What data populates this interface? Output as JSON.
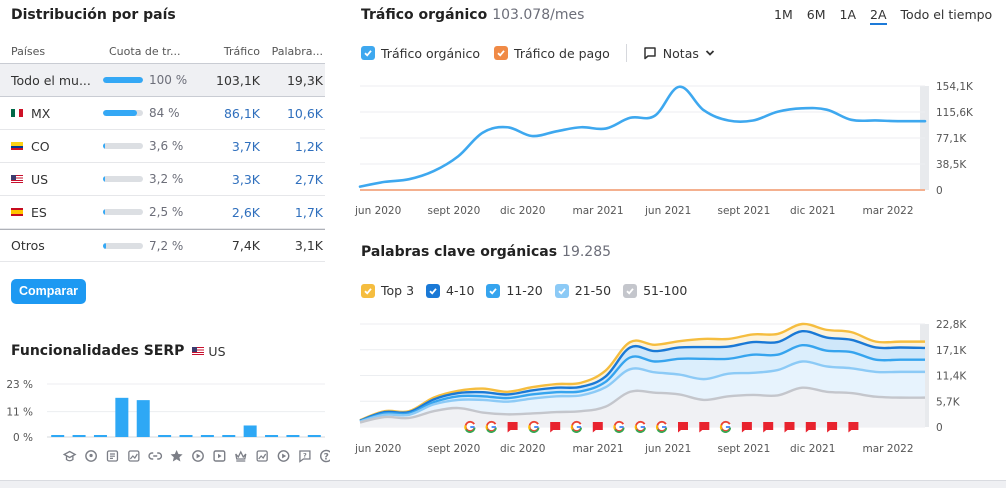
{
  "country_panel": {
    "title": "Distribución por país",
    "headers": [
      "Países",
      "Cuota de tr...",
      "Tráfico",
      "Palabra..."
    ],
    "rows": [
      {
        "country": "Todo el mu...",
        "flag": "",
        "share_label": "100 %",
        "share": 100,
        "traffic": "103,1K",
        "keywords": "19,3K",
        "linked": false,
        "highlight": true
      },
      {
        "country": "MX",
        "flag": "mx",
        "share_label": "84 %",
        "share": 84,
        "traffic": "86,1K",
        "keywords": "10,6K",
        "linked": true,
        "highlight": false
      },
      {
        "country": "CO",
        "flag": "co",
        "share_label": "3,6 %",
        "share": 3.6,
        "traffic": "3,7K",
        "keywords": "1,2K",
        "linked": true,
        "highlight": false
      },
      {
        "country": "US",
        "flag": "us",
        "share_label": "3,2 %",
        "share": 3.2,
        "traffic": "3,3K",
        "keywords": "2,7K",
        "linked": true,
        "highlight": false
      },
      {
        "country": "ES",
        "flag": "es",
        "share_label": "2,5 %",
        "share": 2.5,
        "traffic": "2,6K",
        "keywords": "1,7K",
        "linked": true,
        "highlight": false
      },
      {
        "country": "Otros",
        "flag": "",
        "share_label": "7,2 %",
        "share": 7.2,
        "traffic": "7,4K",
        "keywords": "3,1K",
        "linked": false,
        "highlight": false
      }
    ],
    "compare_button": "Comparar"
  },
  "serp_panel": {
    "title": "Funcionalidades SERP",
    "country": "US",
    "y_ticks": [
      "23 %",
      "11 %",
      "0 %"
    ],
    "icons": [
      "graduation-cap-icon",
      "map-pin-icon",
      "article-icon",
      "image-pack-icon",
      "link-icon",
      "star-icon",
      "video-play-icon",
      "video-icon",
      "crown-icon",
      "image-icon",
      "play-circle-icon",
      "feedback-icon",
      "question-icon"
    ]
  },
  "traffic_panel": {
    "title": "Tráfico orgánico",
    "value": "103.078/mes",
    "ranges": [
      "1M",
      "6M",
      "1A",
      "2A",
      "Todo el tiempo"
    ],
    "active_range": "2A",
    "legend": [
      {
        "label": "Tráfico orgánico",
        "color": "#3ea8ef"
      },
      {
        "label": "Tráfico de pago",
        "color": "#f08a46"
      }
    ],
    "notes_label": "Notas"
  },
  "keywords_panel": {
    "title": "Palabras clave orgánicas",
    "value": "19.285",
    "legend": [
      {
        "label": "Top 3",
        "color": "#f5bd3f"
      },
      {
        "label": "4-10",
        "color": "#1a79d6"
      },
      {
        "label": "11-20",
        "color": "#36a4ee"
      },
      {
        "label": "21-50",
        "color": "#8ccaf6"
      },
      {
        "label": "51-100",
        "color": "#c4c6cc"
      }
    ],
    "markers": [
      "g",
      "g",
      "f",
      "g",
      "f",
      "g",
      "f",
      "g",
      "g",
      "g",
      "f",
      "f",
      "g",
      "f",
      "f",
      "f",
      "f",
      "f",
      "f"
    ]
  },
  "chart_data": [
    {
      "type": "bar",
      "title": "Funcionalidades SERP",
      "categories": [
        "Knowledge panel",
        "Local pack",
        "Featured snippet",
        "Image pack",
        "Sitelinks",
        "Reviews",
        "Video",
        "Featured video",
        "Top stories",
        "Image",
        "Video carousel",
        "Feedback",
        "People also ask"
      ],
      "values": [
        0.5,
        0.5,
        0.5,
        17,
        16,
        0.5,
        0.5,
        0.5,
        0.5,
        5,
        0.5,
        0.5,
        0.5
      ],
      "ylabel": "%",
      "ylim": [
        0,
        23
      ],
      "y_ticks": [
        "23 %",
        "11 %",
        "0 %"
      ],
      "grid": true
    },
    {
      "type": "line",
      "title": "Tráfico orgánico",
      "x": [
        "may 2020",
        "jun 2020",
        "jul 2020",
        "ago 2020",
        "sept 2020",
        "oct 2020",
        "nov 2020",
        "dic 2020",
        "ene 2021",
        "feb 2021",
        "mar 2021",
        "abr 2021",
        "may 2021",
        "jun 2021",
        "jul 2021",
        "ago 2021",
        "sept 2021",
        "oct 2021",
        "nov 2021",
        "dic 2021",
        "ene 2022",
        "feb 2022",
        "mar 2022",
        "abr 2022"
      ],
      "x_tick_labels": [
        "jun 2020",
        "sept 2020",
        "dic 2020",
        "mar 2021",
        "jun 2021",
        "sept 2021",
        "dic 2021",
        "mar 2022"
      ],
      "series": [
        {
          "name": "Tráfico orgánico",
          "color": "#3ea8ef",
          "values": [
            5000,
            12000,
            16000,
            28000,
            50000,
            85000,
            93000,
            80000,
            87000,
            93000,
            91000,
            107000,
            110000,
            153000,
            118000,
            103000,
            103000,
            116000,
            121000,
            119000,
            104000,
            103000,
            102000,
            102000
          ]
        },
        {
          "name": "Tráfico de pago",
          "color": "#f08a46",
          "values": [
            0,
            0,
            0,
            0,
            0,
            0,
            0,
            0,
            0,
            0,
            0,
            0,
            0,
            0,
            0,
            0,
            0,
            0,
            0,
            0,
            0,
            0,
            0,
            0
          ]
        }
      ],
      "y_ticks": [
        "0",
        "38,5K",
        "77,1K",
        "115,6K",
        "154,1K"
      ],
      "ylim": [
        0,
        154100
      ],
      "grid": true
    },
    {
      "type": "area",
      "title": "Palabras clave orgánicas",
      "x": [
        "may 2020",
        "jun 2020",
        "jul 2020",
        "ago 2020",
        "sept 2020",
        "oct 2020",
        "nov 2020",
        "dic 2020",
        "ene 2021",
        "feb 2021",
        "mar 2021",
        "abr 2021",
        "may 2021",
        "jun 2021",
        "jul 2021",
        "ago 2021",
        "sept 2021",
        "oct 2021",
        "nov 2021",
        "dic 2021",
        "ene 2022",
        "feb 2022",
        "mar 2022",
        "abr 2022"
      ],
      "x_tick_labels": [
        "jun 2020",
        "sept 2020",
        "dic 2020",
        "mar 2021",
        "jun 2021",
        "sept 2021",
        "dic 2021",
        "mar 2022"
      ],
      "series": [
        {
          "name": "Top 3",
          "color": "#f5bd3f",
          "values": [
            1500,
            3500,
            3500,
            6500,
            8000,
            8500,
            7800,
            8800,
            9500,
            9800,
            12500,
            18800,
            18200,
            19000,
            19500,
            19500,
            20500,
            20600,
            22800,
            21500,
            21000,
            18900,
            18900,
            18900
          ]
        },
        {
          "name": "4-10",
          "color": "#1a79d6",
          "values": [
            1400,
            3300,
            3300,
            6100,
            7500,
            7700,
            7200,
            8100,
            8700,
            8900,
            11200,
            17600,
            16800,
            17600,
            17700,
            17800,
            18800,
            18800,
            21200,
            19800,
            19300,
            17600,
            17600,
            17500
          ]
        },
        {
          "name": "11-20",
          "color": "#36a4ee",
          "values": [
            1300,
            3000,
            3000,
            5500,
            6800,
            6800,
            6400,
            7200,
            7700,
            7900,
            10000,
            15400,
            14500,
            15100,
            15100,
            15100,
            16000,
            16000,
            18100,
            16900,
            16600,
            14900,
            14900,
            14900
          ]
        },
        {
          "name": "21-50",
          "color": "#8ccaf6",
          "values": [
            1200,
            2700,
            2700,
            5000,
            6000,
            6000,
            5600,
            6300,
            6800,
            7000,
            8800,
            12800,
            12100,
            11600,
            10600,
            11800,
            12000,
            12600,
            14500,
            13400,
            13000,
            12200,
            12200,
            12200
          ]
        },
        {
          "name": "51-100",
          "color": "#c4c6cc",
          "values": [
            1000,
            2200,
            2000,
            3500,
            4200,
            3200,
            2800,
            3000,
            3300,
            3500,
            4500,
            7800,
            7600,
            7200,
            6000,
            6800,
            7100,
            7000,
            8700,
            7800,
            7500,
            6700,
            6500,
            6500
          ]
        }
      ],
      "y_ticks": [
        "0",
        "5,7K",
        "11,4K",
        "17,1K",
        "22,8K"
      ],
      "ylim": [
        0,
        22800
      ],
      "grid": true
    }
  ]
}
